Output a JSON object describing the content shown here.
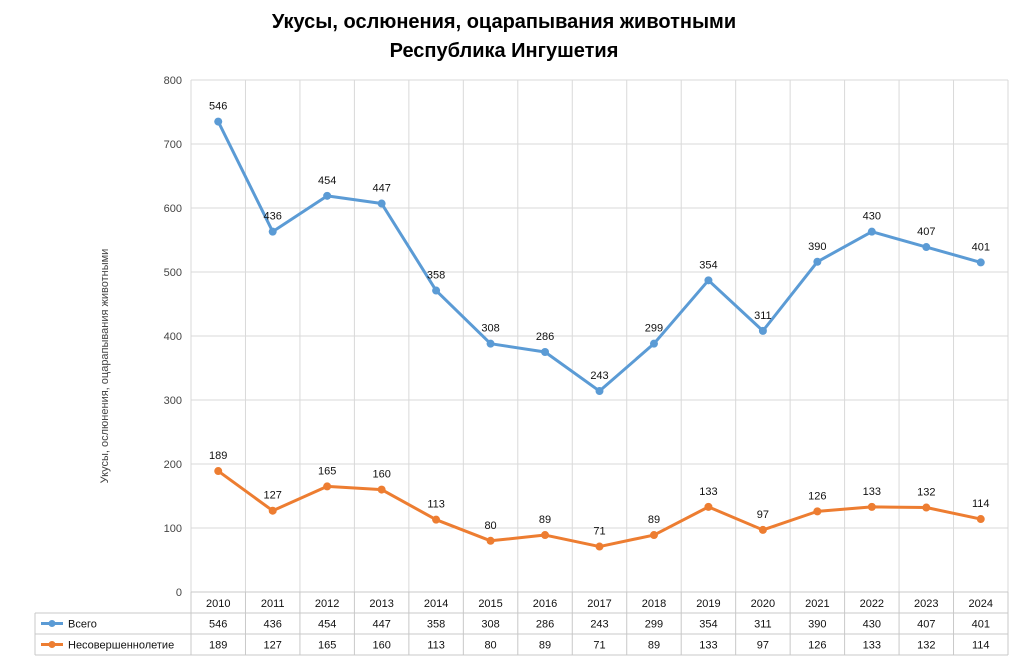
{
  "chart_data": {
    "type": "line",
    "title": [
      "Укусы, ослюнения, оцарапывания животными",
      "Республика Ингушетия"
    ],
    "ylabel": "Укусы, ослюнения, оцарапывания животными",
    "xlabel": "",
    "ylim": [
      0,
      800
    ],
    "yticks": [
      0,
      100,
      200,
      300,
      400,
      500,
      600,
      700,
      800
    ],
    "grid": true,
    "legend": "data-table",
    "categories": [
      "2010",
      "2011",
      "2012",
      "2013",
      "2014",
      "2015",
      "2016",
      "2017",
      "2018",
      "2019",
      "2020",
      "2021",
      "2022",
      "2023",
      "2024"
    ],
    "series": [
      {
        "name": "Всего",
        "color": "#5b9bd5",
        "values": [
          735,
          563,
          619,
          607,
          471,
          388,
          375,
          314,
          388,
          487,
          408,
          516,
          563,
          539,
          515
        ],
        "labels": [
          "546",
          "436",
          "454",
          "447",
          "358",
          "308",
          "286",
          "243",
          "299",
          "354",
          "311",
          "390",
          "430",
          "407",
          "401"
        ]
      },
      {
        "name": "Несовершеннолетие",
        "color": "#ed7d31",
        "values": [
          189,
          127,
          165,
          160,
          113,
          80,
          89,
          71,
          89,
          133,
          97,
          126,
          133,
          132,
          114
        ],
        "labels": [
          "189",
          "127",
          "165",
          "160",
          "113",
          "80",
          "89",
          "71",
          "89",
          "133",
          "97",
          "126",
          "133",
          "132",
          "114"
        ]
      }
    ]
  }
}
